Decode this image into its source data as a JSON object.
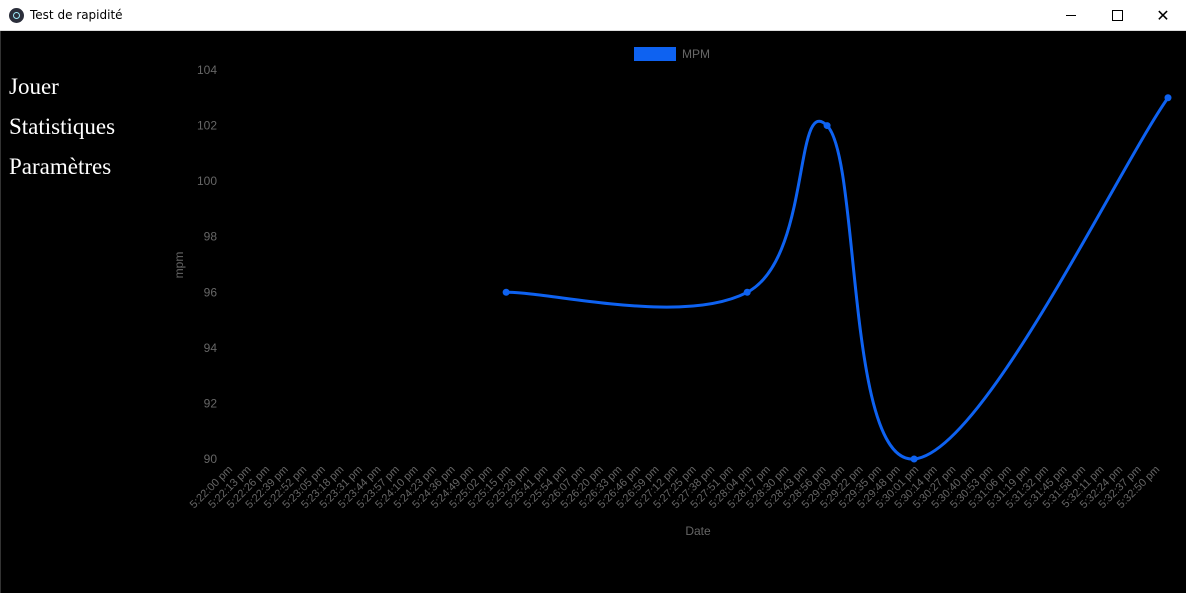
{
  "window": {
    "title": "Test de rapidité",
    "icon": "electron-app-icon",
    "controls": {
      "minimize": "minimize-icon",
      "maximize": "maximize-icon",
      "close": "close-icon"
    }
  },
  "nav": {
    "items": [
      {
        "label": "Jouer"
      },
      {
        "label": "Statistiques"
      },
      {
        "label": "Paramètres"
      }
    ]
  },
  "colors": {
    "series": "#0e62f1",
    "axis_text": "#666666",
    "background": "#000000"
  },
  "chart_data": {
    "type": "line",
    "xlabel": "Date",
    "ylabel": "mpm",
    "ylim": [
      90,
      104
    ],
    "yticks": [
      90,
      92,
      94,
      96,
      98,
      100,
      102,
      104
    ],
    "grid": false,
    "legend": "top-center",
    "categories": [
      "5:22:00 pm",
      "5:22:13 pm",
      "5:22:26 pm",
      "5:22:39 pm",
      "5:22:52 pm",
      "5:23:05 pm",
      "5:23:18 pm",
      "5:23:31 pm",
      "5:23:44 pm",
      "5:23:57 pm",
      "5:24:10 pm",
      "5:24:23 pm",
      "5:24:36 pm",
      "5:24:49 pm",
      "5:25:02 pm",
      "5:25:15 pm",
      "5:25:28 pm",
      "5:25:41 pm",
      "5:25:54 pm",
      "5:26:07 pm",
      "5:26:20 pm",
      "5:26:33 pm",
      "5:26:46 pm",
      "5:26:59 pm",
      "5:27:12 pm",
      "5:27:25 pm",
      "5:27:38 pm",
      "5:27:51 pm",
      "5:28:04 pm",
      "5:28:17 pm",
      "5:28:30 pm",
      "5:28:43 pm",
      "5:28:56 pm",
      "5:29:09 pm",
      "5:29:22 pm",
      "5:29:35 pm",
      "5:29:48 pm",
      "5:30:01 pm",
      "5:30:14 pm",
      "5:30:27 pm",
      "5:30:40 pm",
      "5:30:53 pm",
      "5:31:06 pm",
      "5:31:19 pm",
      "5:31:32 pm",
      "5:31:45 pm",
      "5:31:58 pm",
      "5:32:11 pm",
      "5:32:24 pm",
      "5:32:37 pm",
      "5:32:50 pm"
    ],
    "series": [
      {
        "name": "MPM",
        "color": "#0e62f1",
        "points": [
          {
            "x": "5:25:15 pm",
            "y": 96
          },
          {
            "x": "5:28:04 pm",
            "y": 96
          },
          {
            "x": "5:29:00 pm",
            "y": 102
          },
          {
            "x": "5:30:01 pm",
            "y": 90
          },
          {
            "x": "5:32:59 pm",
            "y": 103
          }
        ]
      }
    ]
  }
}
